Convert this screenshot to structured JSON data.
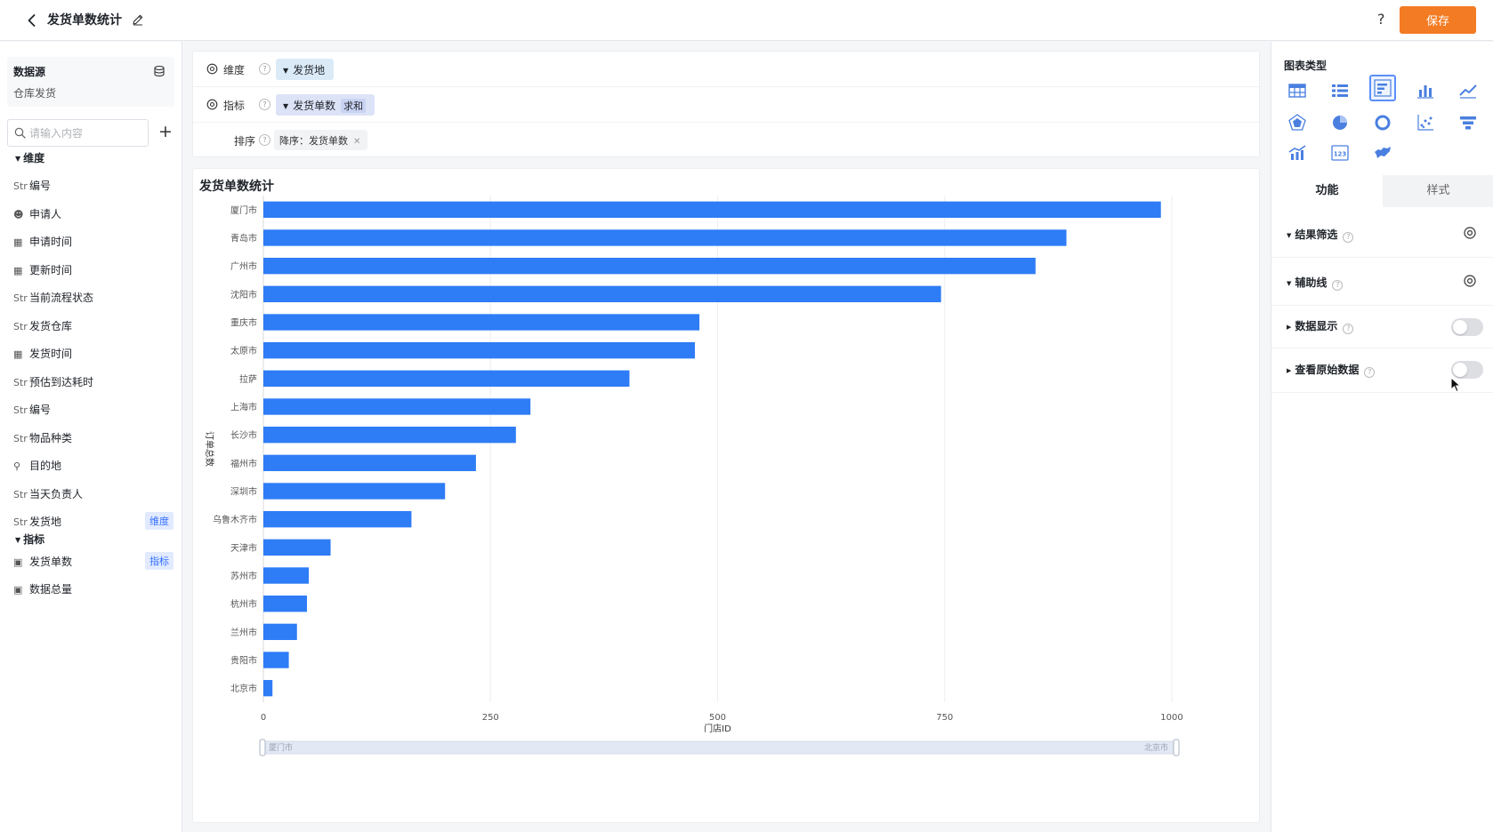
{
  "header": {
    "title": "发货单数统计",
    "save_label": "保存",
    "help_label": "?"
  },
  "sidebar": {
    "datasource_title": "数据源",
    "datasource_name": "仓库发货",
    "search_placeholder": "请输入内容",
    "dimension_group": "维度",
    "metric_group": "指标",
    "dimensions": [
      {
        "type": "Str",
        "label": "编号"
      },
      {
        "type": "user",
        "label": "申请人"
      },
      {
        "type": "date",
        "label": "申请时间"
      },
      {
        "type": "date",
        "label": "更新时间"
      },
      {
        "type": "Str",
        "label": "当前流程状态"
      },
      {
        "type": "Str",
        "label": "发货仓库"
      },
      {
        "type": "date",
        "label": "发货时间"
      },
      {
        "type": "Str",
        "label": "预估到达耗时"
      },
      {
        "type": "Str",
        "label": "编号"
      },
      {
        "type": "Str",
        "label": "物品种类"
      },
      {
        "type": "location",
        "label": "目的地"
      },
      {
        "type": "Str",
        "label": "当天负责人"
      },
      {
        "type": "Str",
        "label": "发货地",
        "badge": "维度"
      }
    ],
    "metrics": [
      {
        "type": "N",
        "label": "发货单数",
        "badge": "指标"
      },
      {
        "type": "N",
        "label": "数据总量"
      }
    ]
  },
  "config": {
    "dimension_label": "维度",
    "dimension_value": "发货地",
    "metric_label": "指标",
    "metric_value": "发货单数",
    "metric_agg": "求和",
    "sort_label": "排序",
    "sort_value": "降序：发货单数"
  },
  "chart_data": {
    "type": "bar",
    "orientation": "horizontal",
    "title": "发货单数统计",
    "xlabel": "门店ID",
    "ylabel": "订单总数",
    "xlim": [
      0,
      1000
    ],
    "xticks": [
      0,
      250,
      500,
      750,
      1000
    ],
    "grid": true,
    "color": "#2e7cf6",
    "categories": [
      "厦门市",
      "青岛市",
      "广州市",
      "沈阳市",
      "重庆市",
      "太原市",
      "拉萨",
      "上海市",
      "长沙市",
      "福州市",
      "深圳市",
      "乌鲁木齐市",
      "天津市",
      "苏州市",
      "杭州市",
      "兰州市",
      "贵阳市",
      "北京市"
    ],
    "values": [
      988,
      884,
      850,
      746,
      480,
      475,
      403,
      294,
      278,
      234,
      200,
      163,
      74,
      50,
      48,
      37,
      28,
      10
    ],
    "slider": {
      "start": "厦门市",
      "end": "北京市"
    }
  },
  "right_panel": {
    "chart_type_title": "图表类型",
    "chart_types": [
      "table-icon",
      "list-icon",
      "horizontal-bar-icon",
      "bar-chart-icon",
      "line-chart-icon",
      "radar-icon",
      "pie-icon",
      "donut-icon",
      "scatter-icon",
      "funnel-icon",
      "combo-chart-icon",
      "number-card-icon",
      "map-icon"
    ],
    "active_chart_type": "horizontal-bar-icon",
    "tab_function": "功能",
    "tab_style": "样式",
    "options": [
      {
        "label": "结果筛选",
        "control": "gear"
      },
      {
        "label": "辅助线",
        "control": "gear"
      },
      {
        "label": "数据显示",
        "control": "toggle",
        "on": false
      },
      {
        "label": "查看原始数据",
        "control": "toggle",
        "on": false
      }
    ]
  }
}
